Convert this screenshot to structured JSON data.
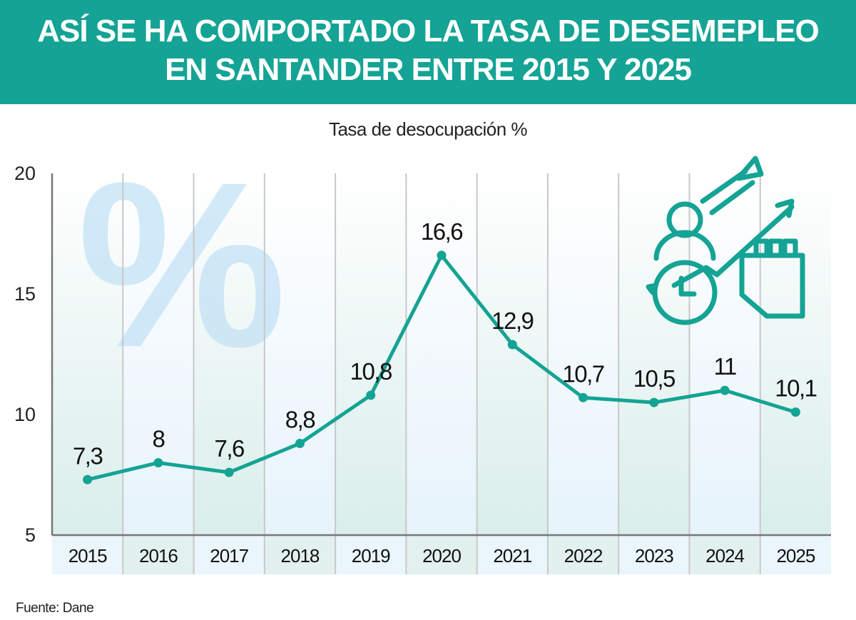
{
  "header": {
    "title_line1": "ASÍ SE HA COMPORTADO LA TASA DE DESEMEPLEO",
    "title_line2": "EN SANTANDER ENTRE 2015 Y 2025"
  },
  "chart_data": {
    "type": "line",
    "title": "ASÍ SE HA COMPORTADO LA TASA DE DESEMEPLEO EN SANTANDER ENTRE 2015 Y 2025",
    "subtitle": "Tasa de desocupación %",
    "categories": [
      "2015",
      "2016",
      "2017",
      "2018",
      "2019",
      "2020",
      "2021",
      "2022",
      "2023",
      "2024",
      "2025"
    ],
    "values": [
      7.3,
      8,
      7.6,
      8.8,
      10.8,
      16.6,
      12.9,
      10.7,
      10.5,
      11,
      10.1
    ],
    "data_labels": [
      "7,3",
      "8",
      "7,6",
      "8,8",
      "10,8",
      "16,6",
      "12,9",
      "10,7",
      "10,5",
      "11",
      "10,1"
    ],
    "ylim": [
      5,
      20
    ],
    "yticks": [
      "5",
      "10",
      "15",
      "20"
    ],
    "xlabel": "",
    "ylabel": "",
    "grid": "vertical",
    "line_color": "#14a394",
    "watermark_glyph": "%",
    "icon": "career-growth-icon"
  },
  "source": "Fuente: Dane"
}
